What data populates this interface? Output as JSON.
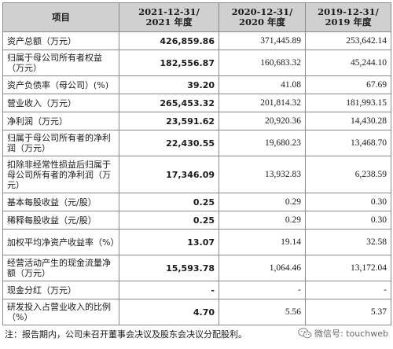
{
  "table": {
    "headers": {
      "item": "项目",
      "col1": [
        "2021-12-31/",
        "2021 年度"
      ],
      "col2": [
        "2020-12-31/",
        "2020 年度"
      ],
      "col3": [
        "2019-12-31/",
        "2019 年度"
      ]
    },
    "rows": [
      {
        "label": "资产总额（万元）",
        "v1": "426,859.86",
        "v2": "371,445.89",
        "v3": "253,642.14"
      },
      {
        "label": "归属于母公司所有者权益（万元）",
        "v1": "182,556.87",
        "v2": "160,683.32",
        "v3": "45,244.10"
      },
      {
        "label": "资产负债率（母公司）(%)",
        "v1": "39.20",
        "v2": "41.08",
        "v3": "67.69"
      },
      {
        "label": "营业收入（万元）",
        "v1": "265,453.32",
        "v2": "201,814.32",
        "v3": "181,993.15"
      },
      {
        "label": "净利润（万元）",
        "v1": "23,591.62",
        "v2": "20,920.36",
        "v3": "14,430.28"
      },
      {
        "label": "归属于母公司所有者的净利润（万元）",
        "v1": "22,430.55",
        "v2": "19,680.23",
        "v3": "13,468.70"
      },
      {
        "label": "扣除非经常性损益后归属于母公司所有者的净利润（万元）",
        "v1": "17,346.09",
        "v2": "13,932.83",
        "v3": "6,238.59"
      },
      {
        "label": "基本每股收益（元/股）",
        "v1": "0.25",
        "v2": "0.29",
        "v3": "0.30"
      },
      {
        "label": "稀释每股收益（元/股）",
        "v1": "0.25",
        "v2": "0.29",
        "v3": "0.30"
      },
      {
        "label": "加权平均净资产收益率（%）",
        "v1": "13.07",
        "v2": "19.14",
        "v3": "32.58"
      },
      {
        "label": "经营活动产生的现金流量净额（万元）",
        "v1": "15,593.78",
        "v2": "1,064.46",
        "v3": "13,172.04"
      },
      {
        "label": "现金分红（万元）",
        "v1": "-",
        "v2": "-",
        "v3": "-"
      },
      {
        "label": "研发投入占营业收入的比例（%）",
        "v1": "4.70",
        "v2": "5.56",
        "v3": "5.37"
      }
    ]
  },
  "note": "注：报告期内，公司未召开董事会决议及股东会决议分配股利。",
  "watermark": {
    "text": "微信号: touchweb",
    "icon": "wechat-icon"
  }
}
